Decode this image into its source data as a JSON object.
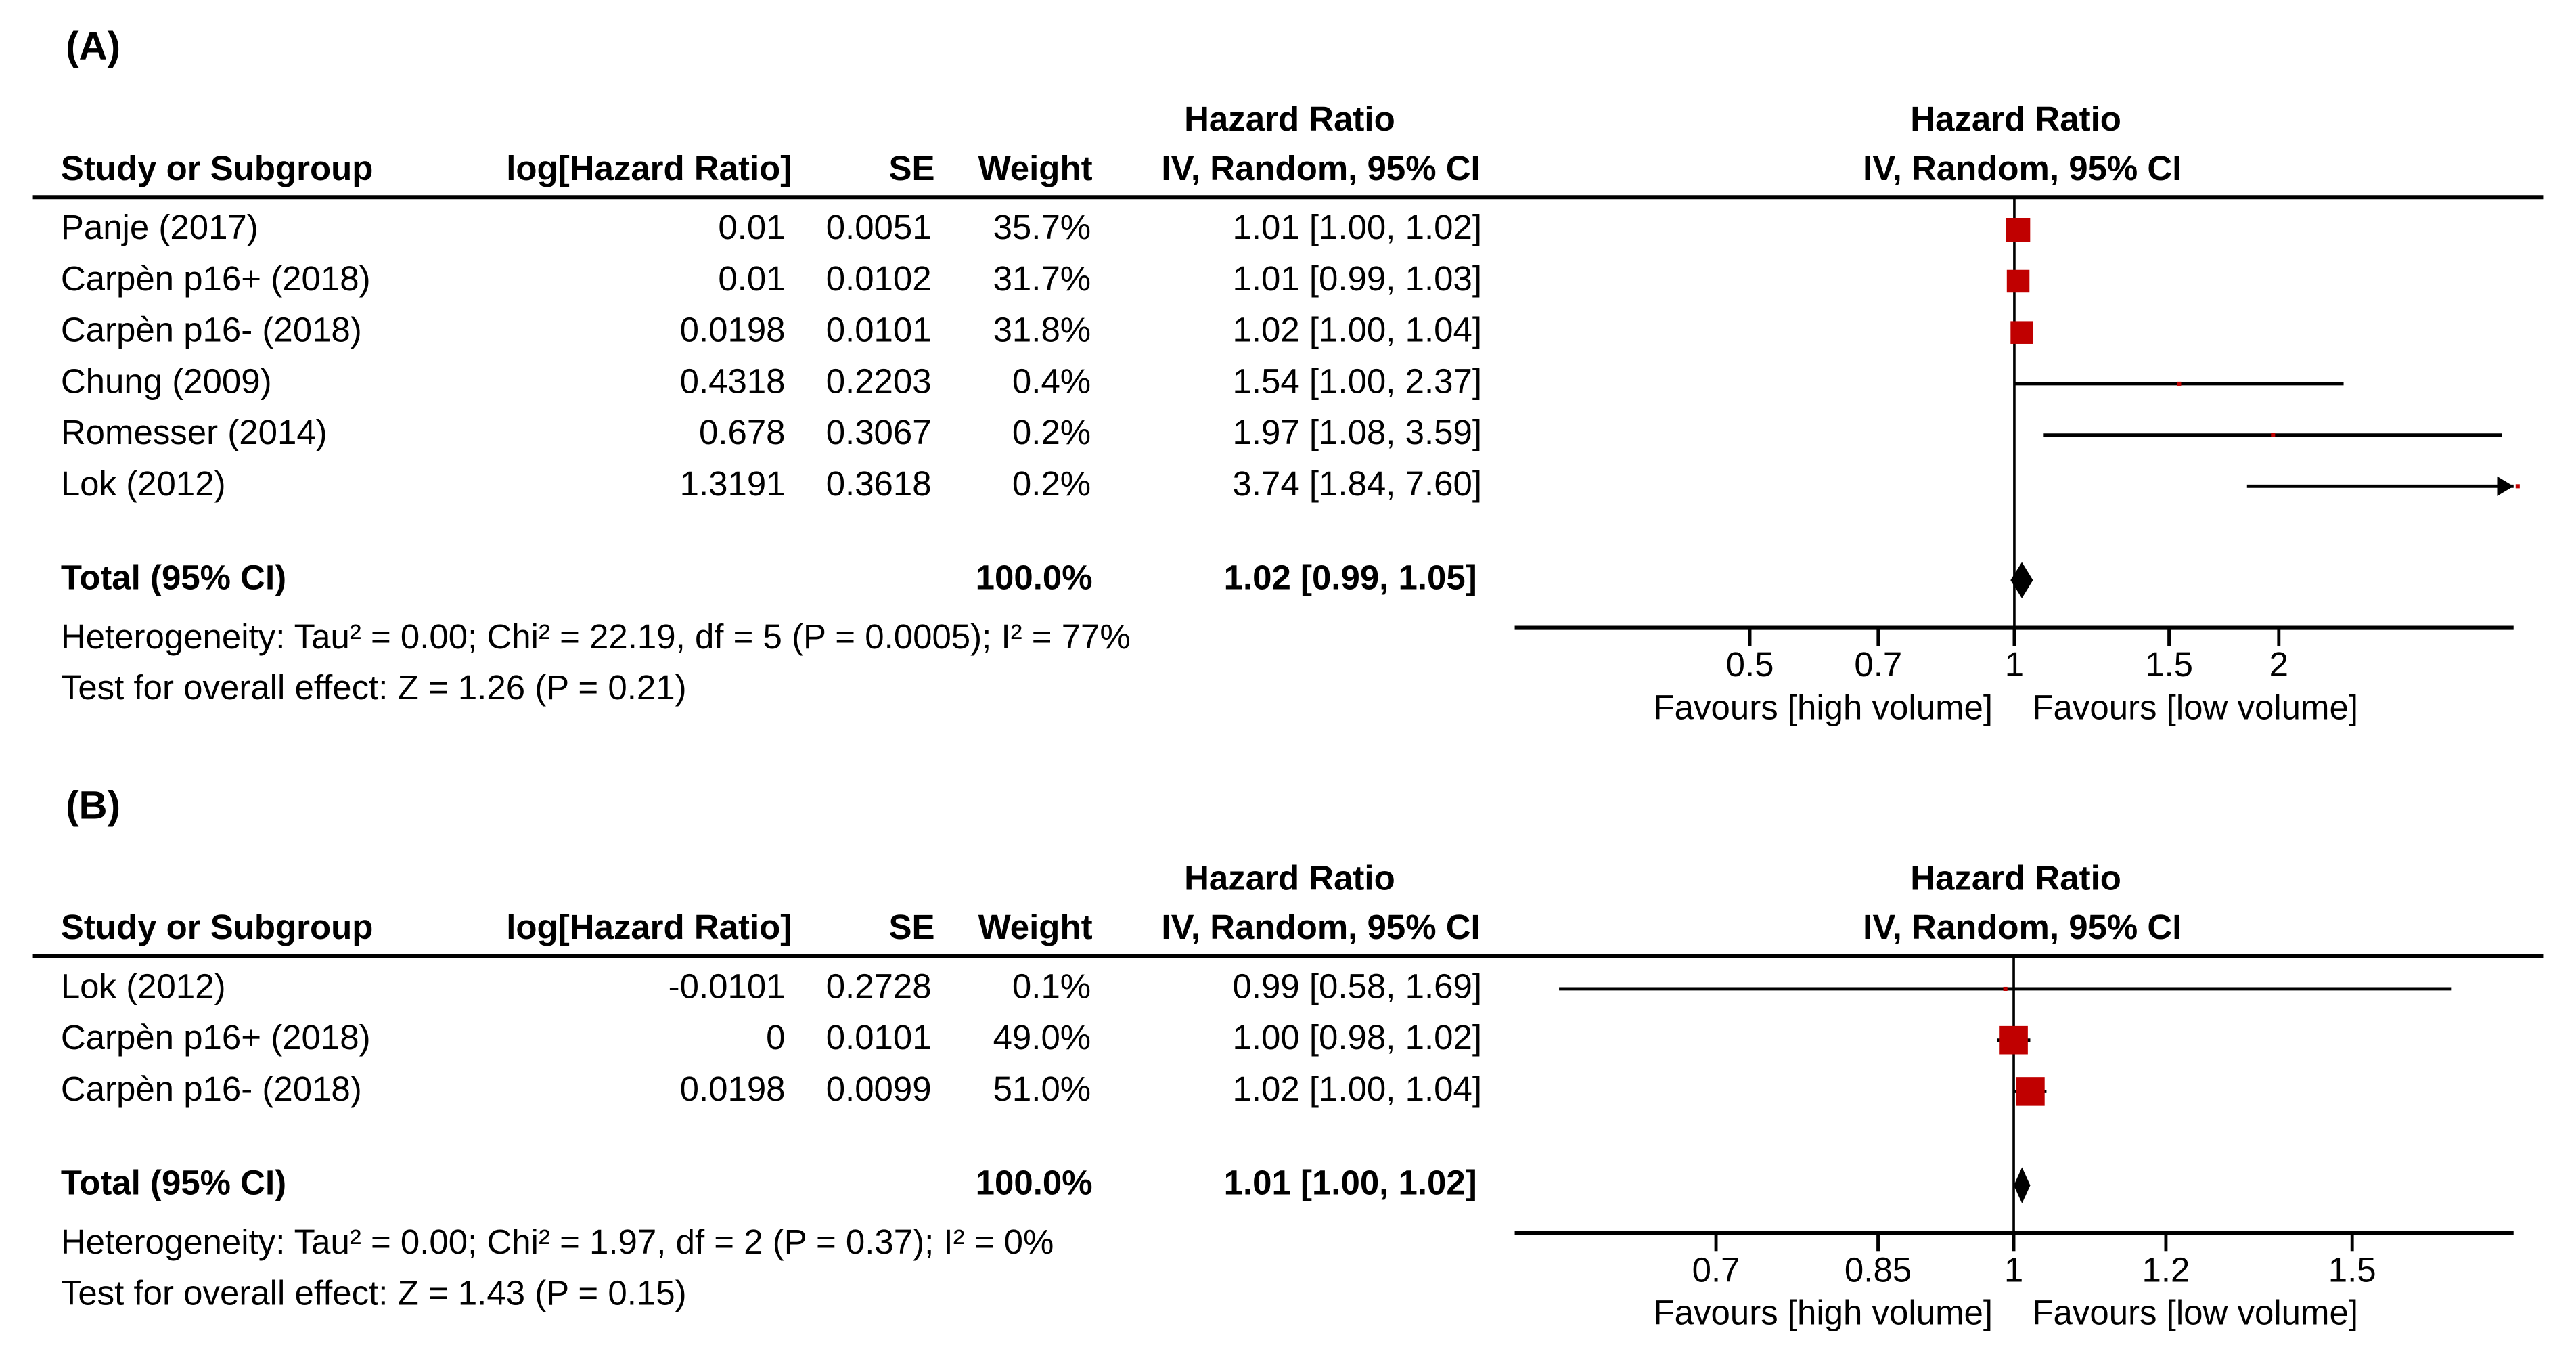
{
  "chart_data": [
    {
      "type": "forest",
      "panel_label": "(A)",
      "columns": [
        "Study or Subgroup",
        "log[Hazard Ratio]",
        "SE",
        "Weight"
      ],
      "effect_header": [
        "Hazard Ratio",
        "IV, Random, 95% CI"
      ],
      "rows": [
        {
          "study": "Panje (2017)",
          "log_hr": 0.01,
          "se": 0.0051,
          "weight": 35.7,
          "weight_label": "35.7%",
          "hr": 1.01,
          "lower": 1.0,
          "upper": 1.02,
          "ci_label": "1.01 [1.00, 1.02]"
        },
        {
          "study": "Carpèn p16+ (2018)",
          "log_hr": 0.01,
          "se": 0.0102,
          "weight": 31.7,
          "weight_label": "31.7%",
          "hr": 1.01,
          "lower": 0.99,
          "upper": 1.03,
          "ci_label": "1.01 [0.99, 1.03]"
        },
        {
          "study": "Carpèn p16- (2018)",
          "log_hr": 0.0198,
          "se": 0.0101,
          "weight": 31.8,
          "weight_label": "31.8%",
          "hr": 1.02,
          "lower": 1.0,
          "upper": 1.04,
          "ci_label": "1.02 [1.00, 1.04]"
        },
        {
          "study": "Chung (2009)",
          "log_hr": 0.4318,
          "se": 0.2203,
          "weight": 0.4,
          "weight_label": "0.4%",
          "hr": 1.54,
          "lower": 1.0,
          "upper": 2.37,
          "ci_label": "1.54 [1.00, 2.37]"
        },
        {
          "study": "Romesser (2014)",
          "log_hr": 0.678,
          "se": 0.3067,
          "weight": 0.2,
          "weight_label": "0.2%",
          "hr": 1.97,
          "lower": 1.08,
          "upper": 3.59,
          "ci_label": "1.97 [1.08, 3.59]"
        },
        {
          "study": "Lok (2012)",
          "log_hr": 1.3191,
          "se": 0.3618,
          "weight": 0.2,
          "weight_label": "0.2%",
          "hr": 3.74,
          "lower": 1.84,
          "upper": 7.6,
          "ci_label": "3.74 [1.84, 7.60]"
        }
      ],
      "total": {
        "label": "Total (95% CI)",
        "weight_label": "100.0%",
        "hr": 1.02,
        "lower": 0.99,
        "upper": 1.05,
        "ci_label": "1.02 [0.99, 1.05]"
      },
      "heterogeneity": "Heterogeneity: Tau² = 0.00; Chi² = 22.19, df = 5 (P = 0.0005); I² = 77%",
      "overall_effect": "Test for overall effect: Z = 1.26 (P = 0.21)",
      "x_scale": "log",
      "xlim": [
        0.27,
        3.7
      ],
      "xticks": [
        0.5,
        0.7,
        1,
        1.5,
        2
      ],
      "favours_left": "Favours [high volume]",
      "favours_right": "Favours [low volume]",
      "square_color": "#c00000",
      "line_color": "#000000"
    },
    {
      "type": "forest",
      "panel_label": "(B)",
      "columns": [
        "Study or Subgroup",
        "log[Hazard Ratio]",
        "SE",
        "Weight"
      ],
      "effect_header": [
        "Hazard Ratio",
        "IV, Random, 95% CI"
      ],
      "rows": [
        {
          "study": "Lok (2012)",
          "log_hr": -0.0101,
          "se": 0.2728,
          "weight": 0.1,
          "weight_label": "0.1%",
          "hr": 0.99,
          "lower": 0.58,
          "upper": 1.69,
          "ci_label": "0.99 [0.58, 1.69]"
        },
        {
          "study": "Carpèn p16+ (2018)",
          "log_hr": 0,
          "se": 0.0101,
          "weight": 49.0,
          "weight_label": "49.0%",
          "hr": 1.0,
          "lower": 0.98,
          "upper": 1.02,
          "ci_label": "1.00 [0.98, 1.02]"
        },
        {
          "study": "Carpèn p16- (2018)",
          "log_hr": 0.0198,
          "se": 0.0099,
          "weight": 51.0,
          "weight_label": "51.0%",
          "hr": 1.02,
          "lower": 1.0,
          "upper": 1.04,
          "ci_label": "1.02 [1.00, 1.04]"
        }
      ],
      "total": {
        "label": "Total (95% CI)",
        "weight_label": "100.0%",
        "hr": 1.01,
        "lower": 1.0,
        "upper": 1.02,
        "ci_label": "1.01 [1.00, 1.02]"
      },
      "heterogeneity": "Heterogeneity: Tau² = 0.00; Chi² = 1.97, df = 2 (P = 0.37); I² = 0%",
      "overall_effect": "Test for overall effect: Z = 1.43 (P = 0.15)",
      "x_scale": "log",
      "xlim": [
        0.55,
        1.82
      ],
      "xticks": [
        0.7,
        0.85,
        1,
        1.2,
        1.5
      ],
      "favours_left": "Favours [high volume]",
      "favours_right": "Favours [low volume]",
      "square_color": "#c00000",
      "line_color": "#000000"
    }
  ]
}
